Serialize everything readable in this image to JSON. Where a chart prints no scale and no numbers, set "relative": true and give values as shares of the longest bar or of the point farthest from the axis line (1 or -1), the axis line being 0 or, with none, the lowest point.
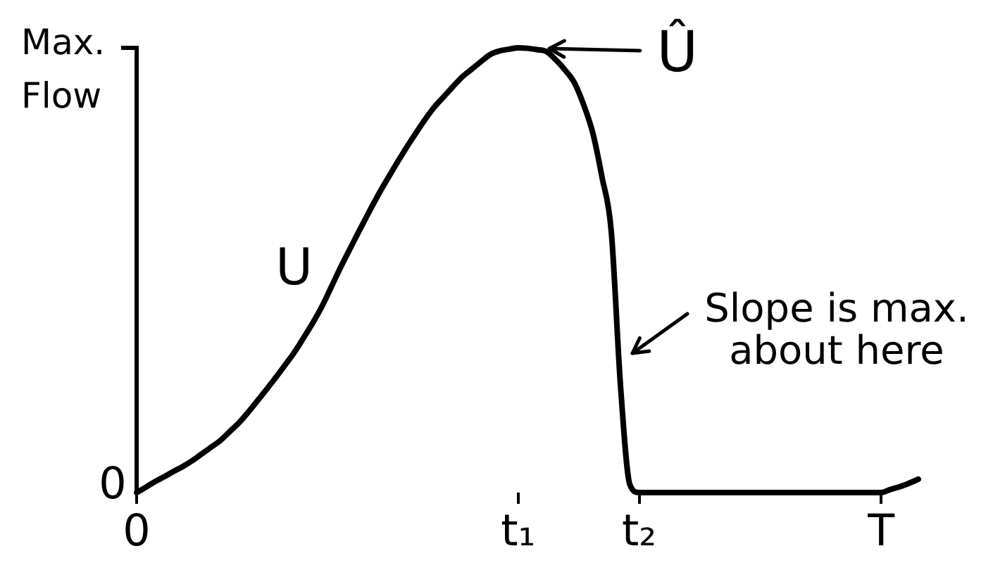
{
  "chart_data": {
    "type": "line",
    "relative": true,
    "categories": [
      "0",
      null,
      null,
      null,
      null,
      null,
      null,
      null,
      null,
      null,
      null,
      null,
      null,
      null,
      null,
      null,
      null,
      null,
      null,
      null,
      null,
      null,
      null,
      null,
      null,
      null,
      null,
      null,
      null,
      null,
      null,
      null,
      null,
      null,
      null,
      null,
      null,
      null,
      null,
      null,
      null,
      "t₁",
      null,
      null,
      null,
      null,
      null,
      null,
      null,
      null,
      null,
      null,
      null,
      null,
      "t₂",
      null,
      null,
      null,
      null,
      null,
      null,
      null,
      null,
      null,
      null,
      null,
      null,
      null,
      null,
      null,
      null,
      null,
      null,
      null,
      null,
      null,
      null,
      null,
      null,
      null,
      "T",
      null,
      null,
      null,
      null
    ],
    "series": [
      {
        "name": "U",
        "color": "#000000",
        "values": [
          0,
          0.012,
          0.025,
          0.036,
          0.048,
          0.059,
          0.072,
          0.087,
          0.102,
          0.117,
          0.137,
          0.157,
          0.181,
          0.207,
          0.233,
          0.26,
          0.288,
          0.317,
          0.35,
          0.384,
          0.422,
          0.466,
          0.51,
          0.551,
          0.592,
          0.632,
          0.671,
          0.707,
          0.742,
          0.776,
          0.808,
          0.839,
          0.867,
          0.89,
          0.913,
          0.935,
          0.952,
          0.969,
          0.985,
          0.993,
          0.997,
          1,
          0.999,
          0.996,
          0.992,
          0.974,
          0.951,
          0.923,
          0.874,
          0.81,
          0.71,
          0.588,
          0.239,
          0.018,
          0,
          0,
          0,
          0,
          0,
          0,
          0,
          0,
          0,
          0,
          0,
          0,
          0,
          0,
          0,
          0,
          0,
          0,
          0,
          0,
          0,
          0,
          0,
          0,
          0,
          0,
          0,
          0.007,
          0.013,
          0.021,
          0.03
        ]
      }
    ],
    "ylabel": "Max. Flow",
    "annotations": [
      {
        "text": "Û",
        "x": "t₁",
        "y": 1
      },
      "Slope is max. about here",
      {
        "text": "0",
        "x": "0",
        "y": 0
      }
    ],
    "marker": "none"
  }
}
